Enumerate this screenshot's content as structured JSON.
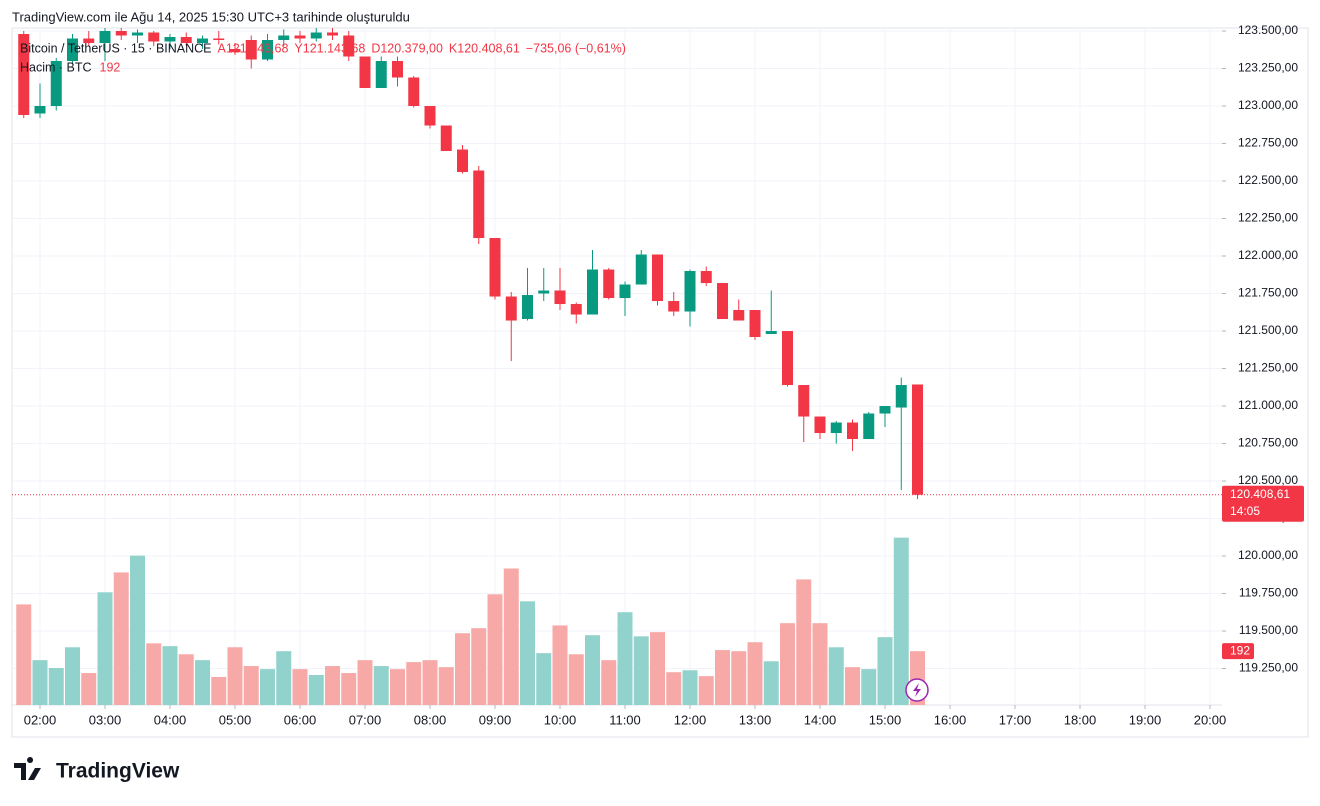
{
  "header": {
    "caption": "TradingView.com ile Ağu 14, 2025 15:30 UTC+3 tarihinde oluşturuldu"
  },
  "chart_data": {
    "type": "candlestick",
    "symbol": "Bitcoin / TetherUS · 15 · BINANCE",
    "ohlc_legend": [
      "A121.143,68",
      "Y121.143,68",
      "D120.379,00",
      "K120.408,61",
      "−735,06 (−0,61%)"
    ],
    "volume_legend": "Hacim · BTC",
    "volume_legend_value": "192",
    "up_color": "#089981",
    "down_color": "#f23645",
    "volume_up_color": "#92d2cc",
    "volume_down_color": "#f7a9a7",
    "x": [
      "01:45",
      "02:00",
      "02:15",
      "02:30",
      "02:45",
      "03:00",
      "03:15",
      "03:30",
      "03:45",
      "04:00",
      "04:15",
      "04:30",
      "04:45",
      "05:00",
      "05:15",
      "05:30",
      "05:45",
      "06:00",
      "06:15",
      "06:30",
      "06:45",
      "07:00",
      "07:15",
      "07:30",
      "07:45",
      "08:00",
      "08:15",
      "08:30",
      "08:45",
      "09:00",
      "09:15",
      "09:30",
      "09:45",
      "10:00",
      "10:15",
      "10:30",
      "10:45",
      "11:00",
      "11:15",
      "11:30",
      "11:45",
      "12:00",
      "12:15",
      "12:30",
      "12:45",
      "13:00",
      "13:15",
      "13:30",
      "13:45",
      "14:00",
      "14:15",
      "14:30",
      "14:45",
      "15:00",
      "15:15",
      "15:30"
    ],
    "open": [
      123480,
      122950,
      123000,
      123300,
      123450,
      123420,
      123500,
      123470,
      123490,
      123430,
      123460,
      123420,
      123450,
      123380,
      123440,
      123310,
      123440,
      123470,
      123450,
      123490,
      123470,
      123330,
      123120,
      123300,
      123190,
      123000,
      122870,
      122710,
      122570,
      122120,
      121730,
      121580,
      121750,
      121770,
      121680,
      121610,
      121910,
      121720,
      121810,
      122010,
      121700,
      121630,
      121900,
      121820,
      121640,
      121640,
      121480,
      121500,
      121140,
      120930,
      120820,
      120890,
      120780,
      120950,
      120990,
      121143.68
    ],
    "high": [
      123500,
      123150,
      123320,
      123480,
      123500,
      123520,
      123520,
      123510,
      123500,
      123480,
      123490,
      123470,
      123500,
      123420,
      123470,
      123480,
      123510,
      123500,
      123520,
      123530,
      123500,
      123330,
      123330,
      123330,
      123200,
      123000,
      122870,
      122740,
      122600,
      122120,
      121760,
      121920,
      121920,
      121920,
      121690,
      122040,
      121920,
      121830,
      122040,
      122010,
      121760,
      121910,
      121930,
      121820,
      121710,
      121640,
      121770,
      121500,
      121140,
      120930,
      120900,
      120910,
      120960,
      121000,
      121190,
      121143.68
    ],
    "low": [
      122920,
      122920,
      122970,
      123280,
      123400,
      123300,
      123440,
      123420,
      123400,
      123380,
      123400,
      123380,
      123410,
      123340,
      123250,
      123300,
      123400,
      123420,
      123430,
      123440,
      123300,
      123120,
      123120,
      123130,
      122990,
      122850,
      122700,
      122550,
      122080,
      121710,
      121300,
      121570,
      121700,
      121640,
      121550,
      121610,
      121710,
      121600,
      121810,
      121670,
      121600,
      121530,
      121800,
      121580,
      121570,
      121440,
      121480,
      121130,
      120760,
      120780,
      120750,
      120700,
      120780,
      120860,
      120440,
      120379
    ],
    "close": [
      122940,
      123000,
      123300,
      123450,
      123420,
      123500,
      123470,
      123490,
      123430,
      123460,
      123420,
      123450,
      123440,
      123360,
      123310,
      123440,
      123470,
      123450,
      123490,
      123470,
      123330,
      123120,
      123300,
      123190,
      123000,
      122870,
      122700,
      122560,
      122120,
      121730,
      121570,
      121740,
      121770,
      121680,
      121610,
      121910,
      121720,
      121810,
      122010,
      121700,
      121630,
      121900,
      121820,
      121580,
      121570,
      121460,
      121500,
      121140,
      120930,
      120820,
      120890,
      120780,
      120950,
      121000,
      121140,
      120408.61
    ],
    "volume": [
      359,
      160,
      132,
      206,
      114,
      402,
      473,
      533,
      220,
      210,
      181,
      160,
      100,
      206,
      139,
      128,
      192,
      128,
      107,
      139,
      114,
      160,
      139,
      128,
      153,
      160,
      135,
      256,
      274,
      395,
      487,
      370,
      185,
      284,
      181,
      249,
      160,
      331,
      245,
      260,
      117,
      124,
      103,
      196,
      192,
      224,
      156,
      292,
      448,
      292,
      206,
      135,
      128,
      242,
      597,
      192
    ],
    "ylim": [
      119007,
      123520
    ],
    "vlim": [
      0,
      660
    ],
    "yticks": [
      {
        "value": 123500,
        "label": "123.500,00"
      },
      {
        "value": 123250,
        "label": "123.250,00"
      },
      {
        "value": 123000,
        "label": "123.000,00"
      },
      {
        "value": 122750,
        "label": "122.750,00"
      },
      {
        "value": 122500,
        "label": "122.500,00"
      },
      {
        "value": 122250,
        "label": "122.250,00"
      },
      {
        "value": 122000,
        "label": "122.000,00"
      },
      {
        "value": 121750,
        "label": "121.750,00"
      },
      {
        "value": 121500,
        "label": "121.500,00"
      },
      {
        "value": 121250,
        "label": "121.250,00"
      },
      {
        "value": 121000,
        "label": "121.000,00"
      },
      {
        "value": 120750,
        "label": "120.750,00"
      },
      {
        "value": 120500,
        "label": "120.500,00"
      },
      {
        "value": 120250,
        "label": "120.250,00"
      },
      {
        "value": 120000,
        "label": "120.000,00"
      },
      {
        "value": 119750,
        "label": "119.750,00"
      },
      {
        "value": 119500,
        "label": "119.500,00"
      },
      {
        "value": 119250,
        "label": "119.250,00"
      }
    ],
    "xticks": [
      "02:00",
      "03:00",
      "04:00",
      "05:00",
      "06:00",
      "07:00",
      "08:00",
      "09:00",
      "10:00",
      "11:00",
      "12:00",
      "13:00",
      "14:00",
      "15:00",
      "16:00",
      "17:00",
      "18:00",
      "19:00",
      "20:00"
    ],
    "grid": true,
    "last_price_label": "120.408,61",
    "countdown": "14:05",
    "last_volume_label": "192"
  },
  "footer": {
    "logo": "TradingView"
  }
}
